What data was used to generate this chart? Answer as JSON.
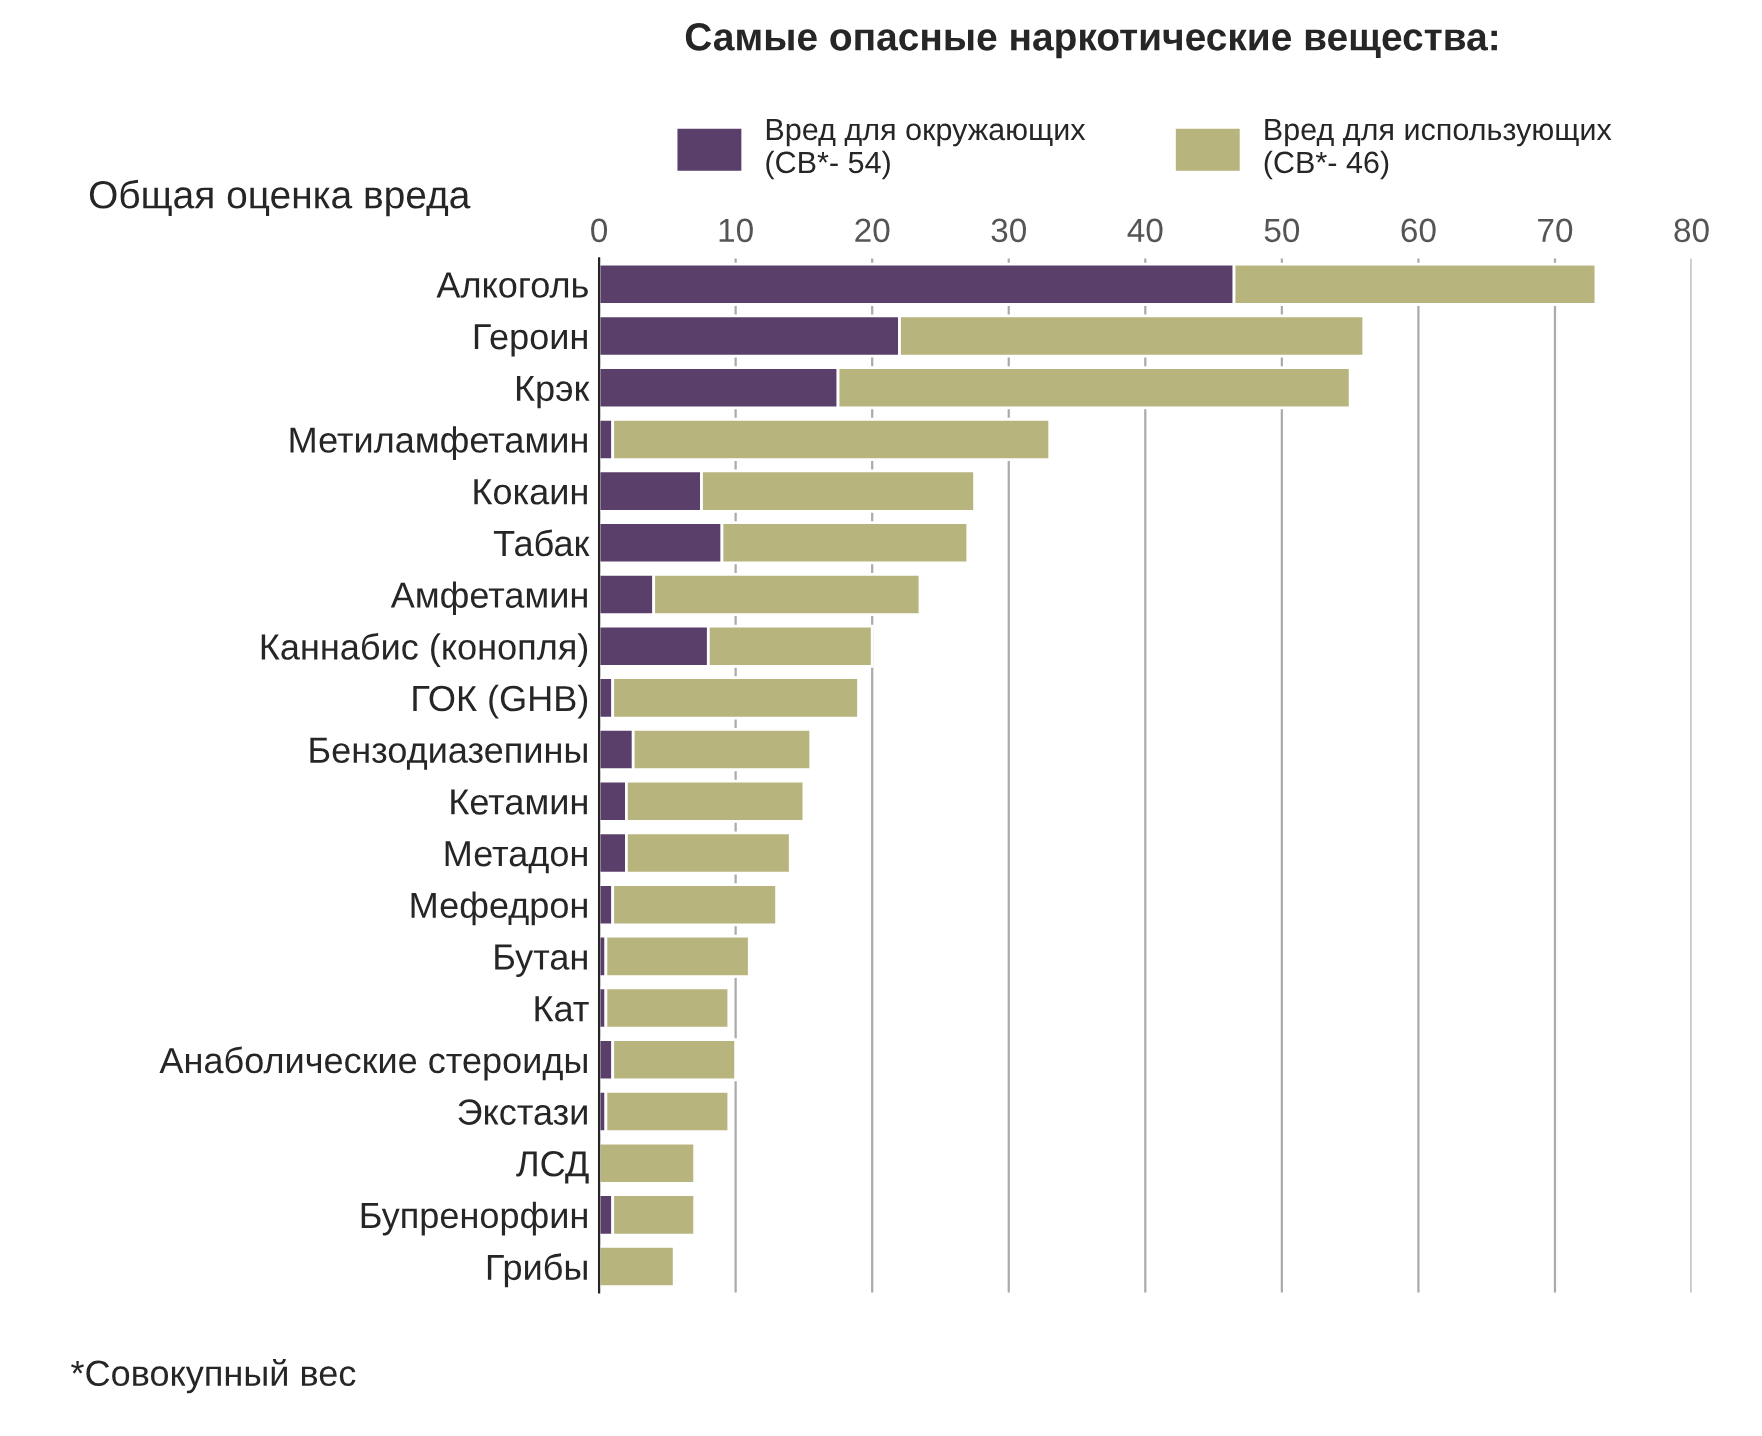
{
  "chart_data": {
    "type": "bar",
    "orientation": "horizontal",
    "stacked": true,
    "title": "Самые опасные наркотические вещества:",
    "ylabel": "Общая оценка вреда",
    "categories": [
      "Алкоголь",
      "Героин",
      "Крэк",
      "Метиламфетамин",
      "Кокаин",
      "Табак",
      "Амфетамин",
      "Каннабис (конопля)",
      "ГОК (GHB)",
      "Бензодиазепины",
      "Кетамин",
      "Метадон",
      "Мефедрон",
      "Бутан",
      "Кат",
      "Анаболические стероиды",
      "Экстази",
      "ЛСД",
      "Бупренорфин",
      "Грибы"
    ],
    "series": [
      {
        "name": "Вред для окружающих\n(СВ*- 54)",
        "color": "#5b3f6b",
        "values": [
          46.5,
          22,
          17.5,
          1,
          7.5,
          9,
          4,
          8,
          1,
          2.5,
          2,
          2,
          1,
          0.5,
          0.5,
          1,
          0.5,
          0,
          1,
          0
        ]
      },
      {
        "name": "Вред для использующих\n(СВ*- 46)",
        "color": "#b8b47e",
        "values": [
          26.5,
          34,
          37.5,
          32,
          20,
          18,
          19.5,
          12,
          18,
          13,
          13,
          12,
          12,
          10.5,
          9,
          9,
          9,
          7,
          6,
          5.5
        ]
      }
    ],
    "xlim": [
      0,
      80
    ],
    "xticks": [
      0,
      10,
      20,
      30,
      40,
      50,
      60,
      70,
      80
    ],
    "grid": "x",
    "legend": "top",
    "annotations": [
      "*Совокупный вес"
    ]
  }
}
